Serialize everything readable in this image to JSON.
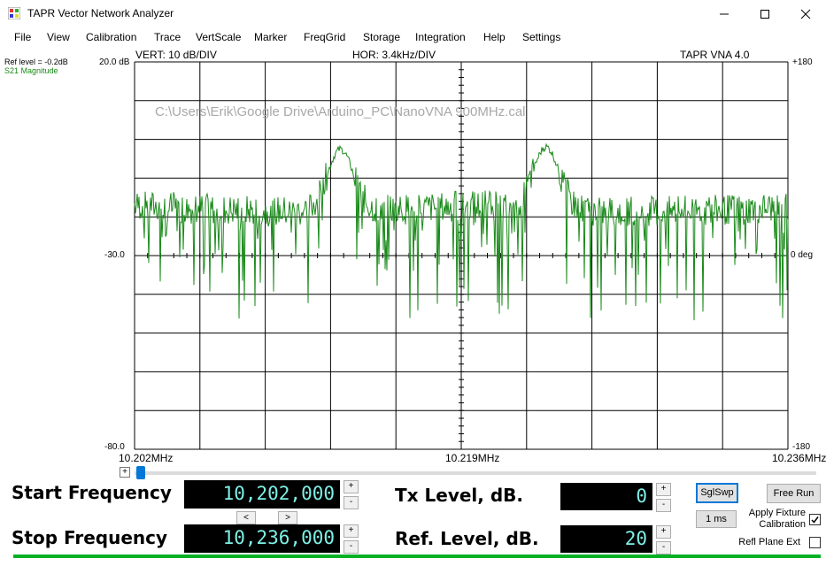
{
  "window": {
    "title": "TAPR Vector Network Analyzer"
  },
  "menu": [
    "File",
    "View",
    "Calibration",
    "Trace",
    "VertScale",
    "Marker",
    "FreqGrid",
    "Storage",
    "Integration",
    "Help",
    "Settings"
  ],
  "plot": {
    "ref_level": "Ref level = -0.2dB",
    "trace_name": "S21 Magnitude",
    "vert_scale": "VERT: 10 dB/DIV",
    "hor_scale": "HOR: 3.4kHz/DIV",
    "version": "TAPR VNA 4.0",
    "file_path": "C:\\Users\\Erik\\Google Drive\\Arduino_PC\\NanoVNA 900MHz.cal",
    "y_left_top": "20.0 dB",
    "y_left_mid": "-30.0",
    "y_left_bottom": "-80.0",
    "y_right_top": "+180",
    "y_right_mid": "0 deg",
    "y_right_bottom": "-180",
    "freq_start": "10.202MHz",
    "freq_mid": "10.219MHz",
    "freq_end": "10.236MHz",
    "trace_color": "#1a8a1a"
  },
  "controls": {
    "start_label": "Start Frequency",
    "start_value": "10,202,000",
    "stop_label": "Stop Frequency",
    "stop_value": "10,236,000",
    "tx_label": "Tx Level, dB.",
    "tx_value": "0",
    "ref_label": "Ref. Level, dB.",
    "ref_value": "20",
    "sglswp": "SglSwp",
    "free_run": "Free Run",
    "ms": "1 ms",
    "apply_fixture": "Apply Fixture Calibration",
    "refl_plane": "Refl Plane Ext",
    "plus": "+",
    "minus": "-",
    "prev": "<",
    "next": ">"
  }
}
